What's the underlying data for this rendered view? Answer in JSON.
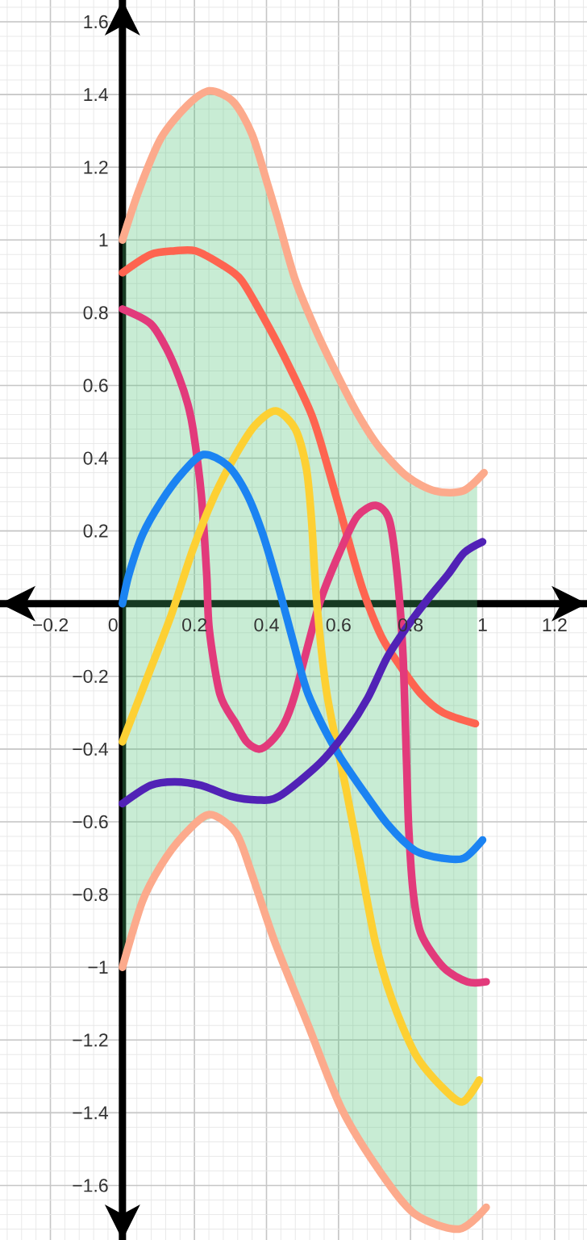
{
  "chart_data": {
    "type": "line",
    "xlim": [
      -0.34,
      1.29
    ],
    "ylim": [
      -1.75,
      1.66
    ],
    "xticks": [
      {
        "value": -0.2,
        "label": "−0.2"
      },
      0,
      0.2,
      0.4,
      0.6,
      0.8,
      1,
      1.2
    ],
    "yticks": [
      {
        "value": -1.6,
        "label": "−1.6"
      },
      {
        "value": -1.4,
        "label": "−1.4"
      },
      {
        "value": -1.2,
        "label": "−1.2"
      },
      {
        "value": -1,
        "label": "−1"
      },
      {
        "value": -0.8,
        "label": "−0.8"
      },
      {
        "value": -0.6,
        "label": "−0.6"
      },
      {
        "value": -0.4,
        "label": "−0.4"
      },
      {
        "value": -0.2,
        "label": "−0.2"
      },
      0.2,
      0.4,
      0.6,
      0.8,
      1,
      1.2,
      1.4,
      1.6
    ],
    "grid": true,
    "series": [
      {
        "type": "area",
        "color": "#48c070",
        "x": [
          0,
          0.05,
          0.1,
          0.15,
          0.2,
          0.25,
          0.3,
          0.35,
          0.4,
          0.45,
          0.5,
          0.55,
          0.6,
          0.65,
          0.7,
          0.75,
          0.8,
          0.85,
          0.9,
          0.95,
          0.985
        ],
        "values": [
          null,
          null,
          null,
          null,
          null,
          null,
          null,
          null,
          null,
          null,
          null,
          null,
          null,
          null,
          null,
          null,
          null,
          null,
          null,
          null,
          null
        ],
        "upper": [
          1.0,
          1.15,
          1.26,
          1.34,
          1.39,
          1.41,
          1.39,
          1.31,
          1.16,
          1.0,
          0.84,
          0.72,
          0.62,
          0.52,
          0.45,
          0.39,
          0.34,
          0.32,
          0.31,
          0.31,
          0.33
        ],
        "lower": [
          -1.0,
          -0.83,
          -0.73,
          -0.66,
          -0.61,
          -0.59,
          -0.62,
          -0.72,
          -0.86,
          -0.99,
          -1.12,
          -1.24,
          -1.37,
          -1.46,
          -1.54,
          -1.61,
          -1.66,
          -1.69,
          -1.71,
          -1.72,
          -1.7
        ]
      },
      {
        "color": "#fcaa8c",
        "x": [
          0,
          0.047,
          0.107,
          0.18,
          0.241,
          0.308,
          0.36,
          0.404,
          0.431,
          0.48,
          0.538,
          0.596,
          0.654,
          0.713,
          0.79,
          0.868,
          0.946,
          1.004
        ],
        "values": [
          1.0,
          1.14,
          1.28,
          1.37,
          1.41,
          1.38,
          1.29,
          1.15,
          1.06,
          0.89,
          0.75,
          0.63,
          0.52,
          0.43,
          0.35,
          0.31,
          0.31,
          0.36
        ]
      },
      {
        "color": "#fcaa8c",
        "x": [
          0,
          0.055,
          0.107,
          0.167,
          0.241,
          0.315,
          0.358,
          0.423,
          0.516,
          0.609,
          0.721,
          0.814,
          0.935,
          1.01
        ],
        "values": [
          -1.0,
          -0.82,
          -0.72,
          -0.64,
          -0.58,
          -0.63,
          -0.74,
          -0.93,
          -1.16,
          -1.39,
          -1.57,
          -1.68,
          -1.72,
          -1.66
        ]
      },
      {
        "color": "#fe6450",
        "x": [
          0,
          0.078,
          0.145,
          0.203,
          0.279,
          0.33,
          0.39,
          0.449,
          0.525,
          0.569,
          0.623,
          0.667,
          0.719,
          0.77,
          0.83,
          0.891,
          0.98
        ],
        "values": [
          0.91,
          0.96,
          0.97,
          0.97,
          0.93,
          0.89,
          0.79,
          0.68,
          0.52,
          0.38,
          0.19,
          0.04,
          -0.09,
          -0.17,
          -0.25,
          -0.3,
          -0.33
        ]
      },
      {
        "color": "#e23a7b",
        "x": [
          0,
          0.078,
          0.123,
          0.158,
          0.181,
          0.196,
          0.219,
          0.234,
          0.241,
          0.271,
          0.315,
          0.345,
          0.379,
          0.412,
          0.449,
          0.479,
          0.547,
          0.607,
          0.652,
          0.703,
          0.741,
          0.763,
          0.779,
          0.789,
          0.795,
          0.808,
          0.83,
          0.891,
          0.958,
          1.01
        ],
        "values": [
          0.81,
          0.77,
          0.7,
          0.62,
          0.55,
          0.48,
          0.3,
          0.08,
          -0.07,
          -0.25,
          -0.33,
          -0.38,
          -0.4,
          -0.38,
          -0.33,
          -0.25,
          0.0,
          0.15,
          0.24,
          0.27,
          0.23,
          0.08,
          -0.14,
          -0.44,
          -0.62,
          -0.8,
          -0.91,
          -1.0,
          -1.04,
          -1.04
        ]
      },
      {
        "color": "#fdd033",
        "x": [
          0,
          0.078,
          0.136,
          0.196,
          0.257,
          0.315,
          0.368,
          0.426,
          0.48,
          0.511,
          0.525,
          0.54,
          0.568,
          0.623,
          0.658,
          0.702,
          0.749,
          0.814,
          0.888,
          0.944,
          0.991
        ],
        "values": [
          -0.38,
          -0.18,
          -0.03,
          0.15,
          0.3,
          0.41,
          0.49,
          0.53,
          0.48,
          0.37,
          0.23,
          0.0,
          -0.25,
          -0.52,
          -0.7,
          -0.93,
          -1.09,
          -1.24,
          -1.33,
          -1.37,
          -1.31
        ]
      },
      {
        "color": "#1b83f2",
        "x": [
          0,
          0.018,
          0.056,
          0.107,
          0.167,
          0.225,
          0.292,
          0.346,
          0.39,
          0.435,
          0.473,
          0.516,
          0.591,
          0.665,
          0.739,
          0.814,
          0.888,
          0.948,
          1.0
        ],
        "values": [
          0.0,
          0.08,
          0.19,
          0.28,
          0.36,
          0.41,
          0.38,
          0.3,
          0.19,
          0.04,
          -0.1,
          -0.25,
          -0.4,
          -0.51,
          -0.61,
          -0.68,
          -0.7,
          -0.7,
          -0.65
        ]
      },
      {
        "color": "#5122b6",
        "x": [
          0,
          0.078,
          0.145,
          0.219,
          0.301,
          0.375,
          0.435,
          0.547,
          0.623,
          0.681,
          0.734,
          0.786,
          0.846,
          0.904,
          0.949,
          1.0
        ],
        "values": [
          -0.55,
          -0.5,
          -0.49,
          -0.5,
          -0.53,
          -0.54,
          -0.53,
          -0.44,
          -0.35,
          -0.26,
          -0.15,
          -0.07,
          0.01,
          0.08,
          0.14,
          0.17
        ]
      }
    ]
  }
}
